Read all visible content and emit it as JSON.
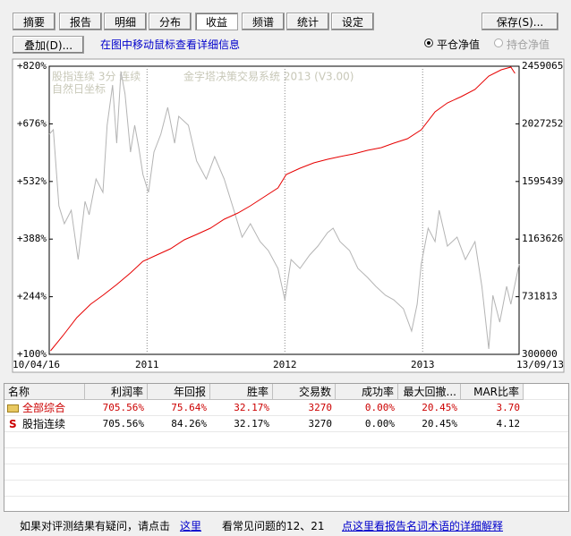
{
  "tabs": [
    {
      "label": "摘要",
      "selected": false
    },
    {
      "label": "报告",
      "selected": false
    },
    {
      "label": "明细",
      "selected": false
    },
    {
      "label": "分布",
      "selected": false
    },
    {
      "label": "收益",
      "selected": true
    },
    {
      "label": "频谱",
      "selected": false
    },
    {
      "label": "统计",
      "selected": false
    },
    {
      "label": "设定",
      "selected": false
    }
  ],
  "save_button": "保存(S)...",
  "overlay_button": "叠加(D)...",
  "hint": "在图中移动鼠标查看详细信息",
  "radios": [
    {
      "label": "平仓净值",
      "checked": true
    },
    {
      "label": "持仓净值",
      "checked": false
    }
  ],
  "chart_data": {
    "type": "line",
    "annotations": [
      "股指连续  3分  连续",
      "自然日坐标",
      "金字塔决策交易系统 2013 (V3.00)"
    ],
    "xlim": [
      2010.29,
      2013.7
    ],
    "xticks": [
      {
        "value": 2010.29,
        "label": "10/04/16"
      },
      {
        "value": 2011.0,
        "label": "2011"
      },
      {
        "value": 2012.0,
        "label": "2012"
      },
      {
        "value": 2013.0,
        "label": "2013"
      },
      {
        "value": 2013.7,
        "label": "13/09/13"
      }
    ],
    "ylim": [
      100,
      820
    ],
    "yticks": [
      {
        "value": 100,
        "label": "+100%"
      },
      {
        "value": 244,
        "label": "+244%"
      },
      {
        "value": 388,
        "label": "+388%"
      },
      {
        "value": 532,
        "label": "+532%"
      },
      {
        "value": 676,
        "label": "+676%"
      },
      {
        "value": 820,
        "label": "+820%"
      }
    ],
    "y2lim": [
      300000,
      2459065
    ],
    "y2ticks": [
      300000,
      731813,
      1163626,
      1595439,
      2027252,
      2459065
    ],
    "xgrid": true,
    "series": [
      {
        "color": "#b4b4b4",
        "axis": "y",
        "x": [
          2010.29,
          2010.32,
          2010.36,
          2010.4,
          2010.45,
          2010.5,
          2010.55,
          2010.58,
          2010.63,
          2010.68,
          2010.71,
          2010.75,
          2010.78,
          2010.81,
          2010.84,
          2010.88,
          2010.91,
          2010.94,
          2010.97,
          2011.01,
          2011.05,
          2011.1,
          2011.15,
          2011.2,
          2011.23,
          2011.3,
          2011.36,
          2011.43,
          2011.49,
          2011.56,
          2011.62,
          2011.69,
          2011.75,
          2011.82,
          2011.88,
          2011.95,
          2012.0,
          2012.045,
          2012.11,
          2012.18,
          2012.24,
          2012.31,
          2012.35,
          2012.4,
          2012.47,
          2012.53,
          2012.6,
          2012.66,
          2012.73,
          2012.79,
          2012.86,
          2012.92,
          2012.96,
          2012.99,
          2013.04,
          2013.09,
          2013.12,
          2013.18,
          2013.25,
          2013.31,
          2013.38,
          2013.43,
          2013.48,
          2013.51,
          2013.56,
          2013.61,
          2013.64,
          2013.7
        ],
        "values": [
          650.1,
          661.2,
          471.2,
          426.5,
          460.0,
          337.0,
          482.4,
          448.8,
          538.3,
          504.7,
          672.4,
          773.0,
          627.7,
          806.6,
          750.7,
          605.3,
          672.4,
          616.5,
          549.4,
          504.7,
          605.3,
          650.1,
          717.1,
          627.7,
          694.8,
          672.4,
          583.0,
          538.3,
          594.2,
          538.3,
          471.2,
          392.9,
          426.5,
          381.7,
          359.4,
          314.7,
          236.4,
          337.0,
          314.7,
          348.2,
          370.6,
          404.1,
          415.3,
          381.7,
          359.4,
          314.7,
          292.3,
          270.0,
          247.6,
          236.4,
          214.0,
          158.1,
          225.2,
          325.8,
          415.3,
          381.7,
          460.0,
          370.6,
          392.9,
          337.0,
          381.7,
          270.0,
          113.4,
          247.6,
          180.5,
          270.0,
          225.2,
          325.8
        ]
      },
      {
        "color": "#e60000",
        "axis": "y2",
        "x": [
          2010.3,
          2010.39,
          2010.49,
          2010.59,
          2010.68,
          2010.78,
          2010.88,
          2010.97,
          2011.07,
          2011.17,
          2011.27,
          2011.36,
          2011.46,
          2011.56,
          2011.66,
          2011.75,
          2011.85,
          2011.95,
          2012.01,
          2012.11,
          2012.21,
          2012.31,
          2012.4,
          2012.5,
          2012.6,
          2012.7,
          2012.79,
          2012.89,
          2012.99,
          2013.09,
          2013.18,
          2013.28,
          2013.38,
          2013.48,
          2013.57,
          2013.64,
          2013.67
        ],
        "values": [
          326820,
          440805,
          574905,
          675480,
          742530,
          823000,
          910155,
          997320,
          1044255,
          1091190,
          1158240,
          1198470,
          1245405,
          1312455,
          1359390,
          1413030,
          1480080,
          1547130,
          1647705,
          1694640,
          1734870,
          1761690,
          1781805,
          1801920,
          1828740,
          1848855,
          1882380,
          1915905,
          1982955,
          2117055,
          2184105,
          2231040,
          2284680,
          2385255,
          2432190,
          2452305,
          2405370
        ]
      }
    ]
  },
  "table": {
    "columns": [
      "名称",
      "利润率",
      "年回报",
      "胜率",
      "交易数",
      "成功率",
      "最大回撤...",
      "MAR比率"
    ],
    "rows": [
      {
        "icon": "folder",
        "color": "#cc0000",
        "cells": [
          "全部综合",
          "705.56%",
          "75.64%",
          "32.17%",
          "3270",
          "0.00%",
          "20.45%",
          "3.70"
        ]
      },
      {
        "icon": "S",
        "color": "#000000",
        "cells": [
          "股指连续",
          "705.56%",
          "84.26%",
          "32.17%",
          "3270",
          "0.00%",
          "20.45%",
          "4.12"
        ]
      }
    ]
  },
  "footer": {
    "question": "如果对评测结果有疑问，请点击",
    "link": "这里",
    "faq": "看常见问题的12、21",
    "glossary": "点这里看报告名词术语的详细解释"
  }
}
